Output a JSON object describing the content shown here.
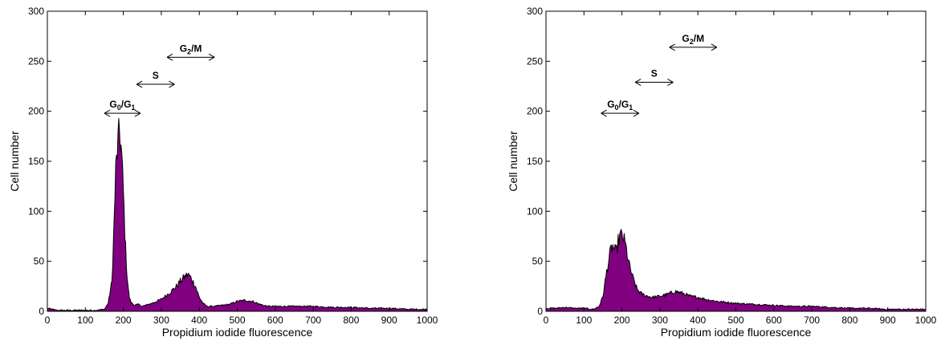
{
  "chart_data": [
    {
      "type": "area",
      "xlabel": "Propidium iodide fluorescence",
      "ylabel": "Cell number",
      "xlim": [
        0,
        1000
      ],
      "ylim": [
        0,
        300
      ],
      "xticks": [
        0,
        100,
        200,
        300,
        400,
        500,
        600,
        700,
        800,
        900,
        1000
      ],
      "yticks": [
        0,
        50,
        100,
        150,
        200,
        250,
        300
      ],
      "fill_color": "#800080",
      "line_color": "#000000",
      "series": [
        {
          "x": [
            0,
            25,
            50,
            75,
            100,
            125,
            150,
            160,
            170,
            175,
            180,
            185,
            190,
            195,
            200,
            205,
            210,
            215,
            220,
            230,
            240,
            250,
            275,
            300,
            320,
            340,
            350,
            360,
            370,
            375,
            380,
            390,
            400,
            410,
            420,
            440,
            460,
            480,
            500,
            520,
            540,
            560,
            580,
            600,
            650,
            700,
            750,
            800,
            850,
            900,
            950,
            1000
          ],
          "values": [
            3,
            1,
            1,
            1,
            1,
            1,
            2,
            8,
            30,
            80,
            140,
            165,
            180,
            160,
            120,
            70,
            35,
            15,
            9,
            6,
            7,
            5,
            8,
            12,
            18,
            25,
            30,
            34,
            37,
            35,
            32,
            25,
            14,
            8,
            5,
            5,
            6,
            7,
            10,
            11,
            10,
            7,
            5,
            5,
            5,
            5,
            4,
            4,
            3,
            3,
            2,
            2
          ]
        }
      ],
      "annotations": [
        {
          "main": "G",
          "sub": "0",
          "main2": "/G",
          "sub2": "1",
          "x_from": 150,
          "x_to": 245,
          "y": 198
        },
        {
          "main": "S",
          "x_from": 235,
          "x_to": 335,
          "y": 227
        },
        {
          "main": "G",
          "sub": "2",
          "main2": "/M",
          "x_from": 315,
          "x_to": 440,
          "y": 254
        }
      ]
    },
    {
      "type": "area",
      "xlabel": "Propidium iodide fluorescence",
      "ylabel": "Cell number",
      "xlim": [
        0,
        1000
      ],
      "ylim": [
        0,
        300
      ],
      "xticks": [
        0,
        100,
        200,
        300,
        400,
        500,
        600,
        700,
        800,
        900,
        1000
      ],
      "yticks": [
        0,
        50,
        100,
        150,
        200,
        250,
        300
      ],
      "fill_color": "#800080",
      "line_color": "#000000",
      "series": [
        {
          "x": [
            0,
            25,
            50,
            75,
            100,
            125,
            140,
            150,
            160,
            170,
            175,
            180,
            185,
            190,
            195,
            200,
            205,
            210,
            215,
            220,
            230,
            240,
            250,
            260,
            280,
            300,
            320,
            340,
            360,
            380,
            400,
            420,
            450,
            500,
            550,
            600,
            650,
            700,
            750,
            800,
            850,
            900,
            950,
            1000
          ],
          "values": [
            3,
            3,
            4,
            3,
            3,
            2,
            5,
            15,
            40,
            60,
            65,
            62,
            58,
            70,
            75,
            76,
            72,
            65,
            55,
            45,
            32,
            22,
            18,
            16,
            14,
            15,
            17,
            20,
            18,
            15,
            14,
            12,
            10,
            8,
            7,
            6,
            5,
            5,
            4,
            3,
            3,
            2,
            2,
            2
          ]
        }
      ],
      "annotations": [
        {
          "main": "G",
          "sub": "0",
          "main2": "/G",
          "sub2": "1",
          "x_from": 145,
          "x_to": 245,
          "y": 198
        },
        {
          "main": "S",
          "x_from": 235,
          "x_to": 335,
          "y": 229
        },
        {
          "main": "G",
          "sub": "2",
          "main2": "/M",
          "x_from": 325,
          "x_to": 450,
          "y": 264
        }
      ]
    }
  ]
}
